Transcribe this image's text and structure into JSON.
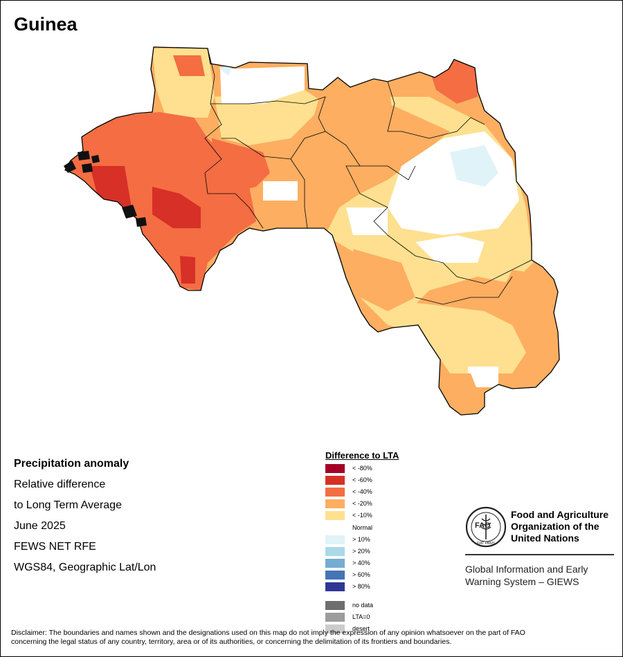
{
  "title": "Guinea",
  "info": {
    "line1": "Precipitation anomaly",
    "line2": "Relative difference",
    "line3": "to Long Term Average",
    "line4": "June 2025",
    "line5": "FEWS NET RFE",
    "line6": "WGS84, Geographic Lat/Lon"
  },
  "legend": {
    "title": "Difference to LTA",
    "classes": [
      {
        "label": "< -80%",
        "color": "#a50026"
      },
      {
        "label": "< -60%",
        "color": "#d73027"
      },
      {
        "label": "< -40%",
        "color": "#f46d43"
      },
      {
        "label": "< -20%",
        "color": "#fdae61"
      },
      {
        "label": "< -10%",
        "color": "#fee090"
      },
      {
        "label": "> 10%",
        "color": "#e0f3f8"
      },
      {
        "label": "> 20%",
        "color": "#abd9e9"
      },
      {
        "label": "> 40%",
        "color": "#74add1"
      },
      {
        "label": "> 60%",
        "color": "#4575b4"
      },
      {
        "label": "> 80%",
        "color": "#313695"
      }
    ],
    "normal_label": "Normal",
    "extra": [
      {
        "label": "no data",
        "color": "#6e6e6e"
      },
      {
        "label": "LTA=0",
        "color": "#9c9c9c"
      },
      {
        "label": "desert",
        "color": "#cccccc"
      }
    ]
  },
  "fao": {
    "line1": "Food and Agriculture",
    "line2": "Organization of the",
    "line3": "United Nations",
    "giews1": "Global Information and Early",
    "giews2": "Warning System – GIEWS",
    "emblem_text": "FIAT PANIS",
    "emblem_letters": "FAO"
  },
  "disclaimer": {
    "line1": "Disclaimer: The boundaries and names shown and the designations used on this map do not imply the expression of any opinion whatsoever on the part of FAO",
    "line2": "concerning the legal status of any country, territory, area or of its authorities, or concerning the delimitation of its frontiers and boundaries."
  },
  "map": {
    "colors": {
      "extreme_deficit": "#d73027",
      "strong_deficit": "#f46d43",
      "moderate_deficit": "#fdae61",
      "mild_deficit": "#fee090",
      "normal": "#ffffff",
      "mild_surplus": "#e0f3f8",
      "boundary": "#000000"
    }
  }
}
